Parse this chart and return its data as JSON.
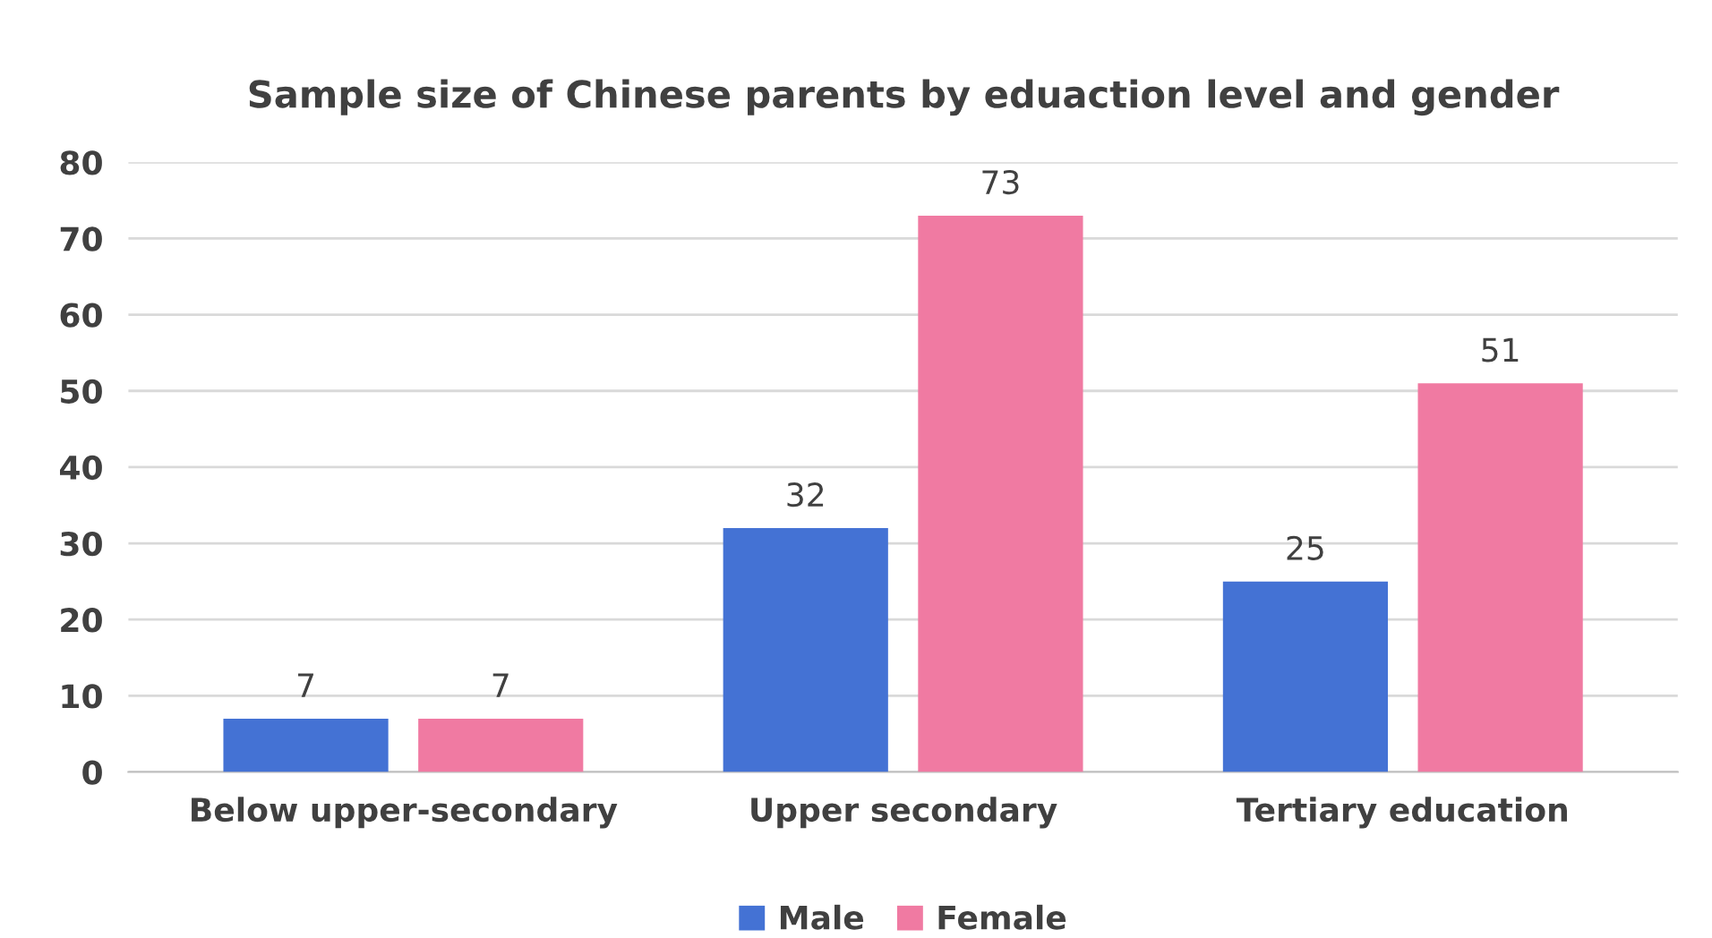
{
  "chart_data": {
    "type": "bar",
    "title": "Sample size of Chinese parents by eduaction level and gender",
    "categories": [
      "Below upper-secondary",
      "Upper secondary",
      "Tertiary education"
    ],
    "series": [
      {
        "name": "Male",
        "color": "#4472d4",
        "values": [
          7,
          32,
          25
        ]
      },
      {
        "name": "Female",
        "color": "#f07aa2",
        "values": [
          7,
          73,
          51
        ]
      }
    ],
    "ylim": [
      0,
      80
    ],
    "yticks": [
      0,
      10,
      20,
      30,
      40,
      50,
      60,
      70,
      80
    ],
    "grid": "y",
    "legend": "bottom",
    "data_labels": true
  }
}
